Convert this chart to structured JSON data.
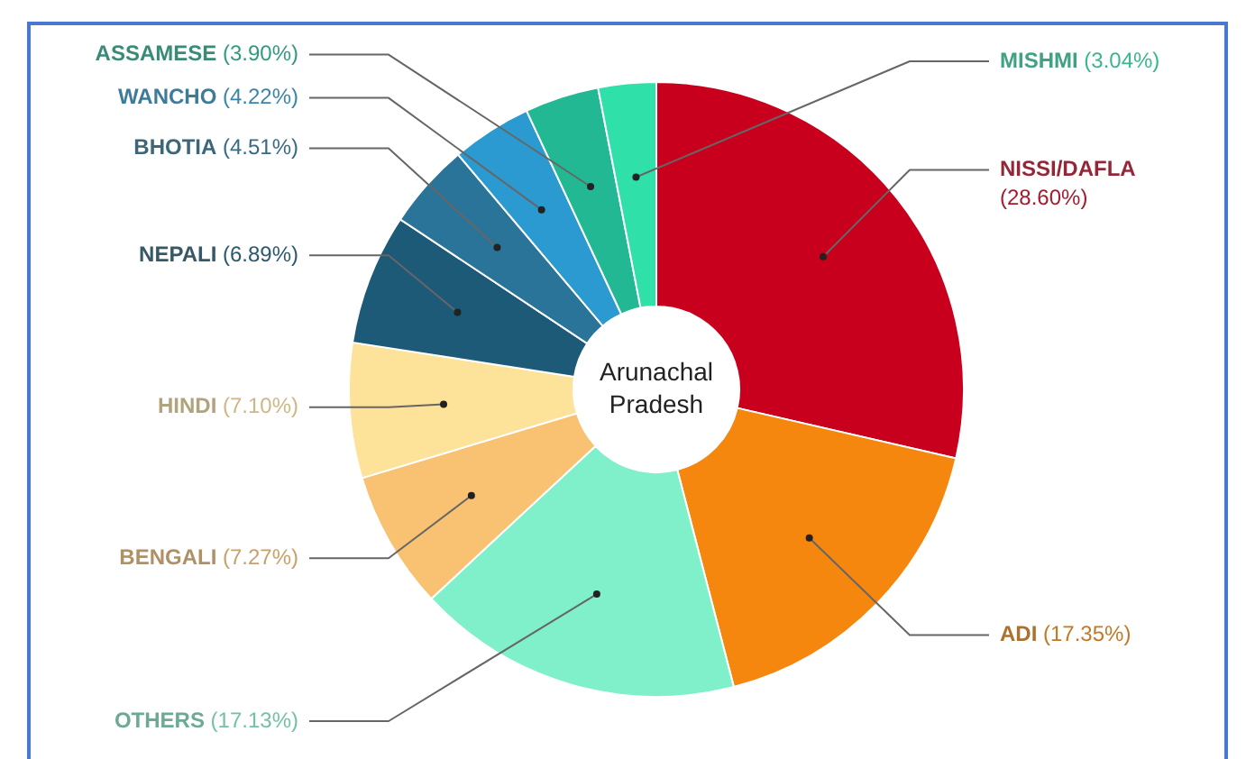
{
  "chart_data": {
    "type": "donut",
    "title": "Arunachal Pradesh",
    "categories": [
      "NISSI/DAFLA",
      "ADI",
      "OTHERS",
      "BENGALI",
      "HINDI",
      "NEPALI",
      "BHOTIA",
      "WANCHO",
      "ASSAMESE",
      "MISHMI"
    ],
    "values": [
      28.6,
      17.35,
      17.13,
      7.27,
      7.1,
      6.89,
      4.51,
      4.22,
      3.9,
      3.04
    ],
    "value_labels": [
      "(28.60%)",
      "(17.35%)",
      "(17.13%)",
      "(7.27%)",
      "(7.10%)",
      "(6.89%)",
      "(4.51%)",
      "(4.22%)",
      "(3.90%)",
      "(3.04%)"
    ],
    "colors": [
      "#c8001e",
      "#f5870f",
      "#80f0cb",
      "#f9c272",
      "#fde29a",
      "#1c5a78",
      "#2a7499",
      "#2b9ad0",
      "#22b893",
      "#2fe0a8"
    ],
    "legend": false
  }
}
